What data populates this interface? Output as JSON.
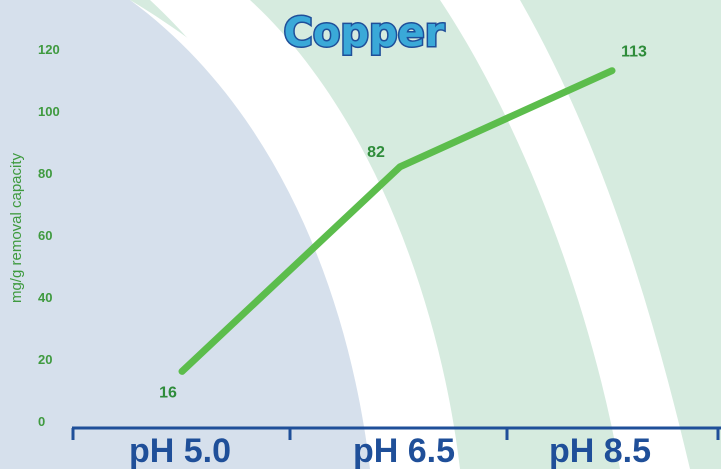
{
  "chart_data": {
    "type": "line",
    "title": "Copper",
    "ylabel": "mg/g removal capacity",
    "xlabel": "",
    "categories": [
      "pH 5.0",
      "pH 6.5",
      "pH 8.5"
    ],
    "series": [
      {
        "values": [
          16,
          82,
          113
        ]
      }
    ],
    "data_labels": [
      "16",
      "82",
      "113"
    ],
    "yticks": [
      0,
      20,
      40,
      60,
      80,
      100,
      120
    ],
    "ylim": [
      0,
      120
    ],
    "grid": false,
    "legend": "none"
  },
  "colors": {
    "line": "#5cbd4c",
    "data_label": "#2e8c3a",
    "tick_label": "#3f9a3f",
    "axis": "#1f4f99",
    "title_fill": "#3aa9d8",
    "title_stroke": "#1f4f99",
    "band_blue": "#d6e0ec",
    "band_green": "#d6ebdf"
  }
}
